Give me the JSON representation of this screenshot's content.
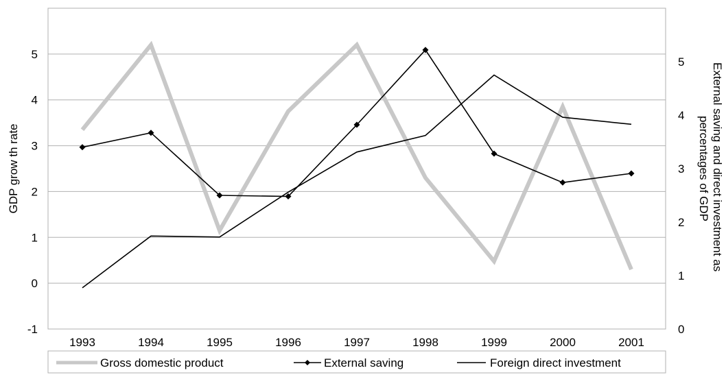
{
  "chart_data": {
    "type": "line",
    "categories": [
      "1993",
      "1994",
      "1995",
      "1996",
      "1997",
      "1998",
      "1999",
      "2000",
      "2001"
    ],
    "y_left": {
      "label": "GDP grow th rate",
      "ylim": [
        -1,
        6
      ],
      "ticks": [
        "-1",
        "0",
        "1",
        "2",
        "3",
        "4",
        "5"
      ]
    },
    "y_right": {
      "label_lines": [
        "External saving and direct investment as",
        "percentages of GDP"
      ],
      "ylim": [
        0,
        6
      ],
      "ticks": [
        "0",
        "1",
        "2",
        "3",
        "4",
        "5"
      ]
    },
    "grid": true,
    "legend_position": "bottom",
    "series": [
      {
        "name": "Gross domestic product",
        "axis": "left",
        "color": "#c8c8c8",
        "marker": "none",
        "values": [
          3.35,
          5.2,
          1.15,
          3.75,
          5.2,
          2.3,
          0.48,
          3.85,
          0.3
        ]
      },
      {
        "name": "External saving",
        "axis": "right",
        "color": "#000000",
        "marker": "diamond",
        "values": [
          3.4,
          3.67,
          2.5,
          2.48,
          3.82,
          5.22,
          3.28,
          2.74,
          2.91
        ]
      },
      {
        "name": "Foreign direct investment",
        "axis": "right",
        "color": "#000000",
        "marker": "none",
        "values": [
          0.77,
          1.74,
          1.72,
          2.56,
          3.31,
          3.62,
          4.75,
          3.96,
          3.83
        ]
      }
    ]
  }
}
